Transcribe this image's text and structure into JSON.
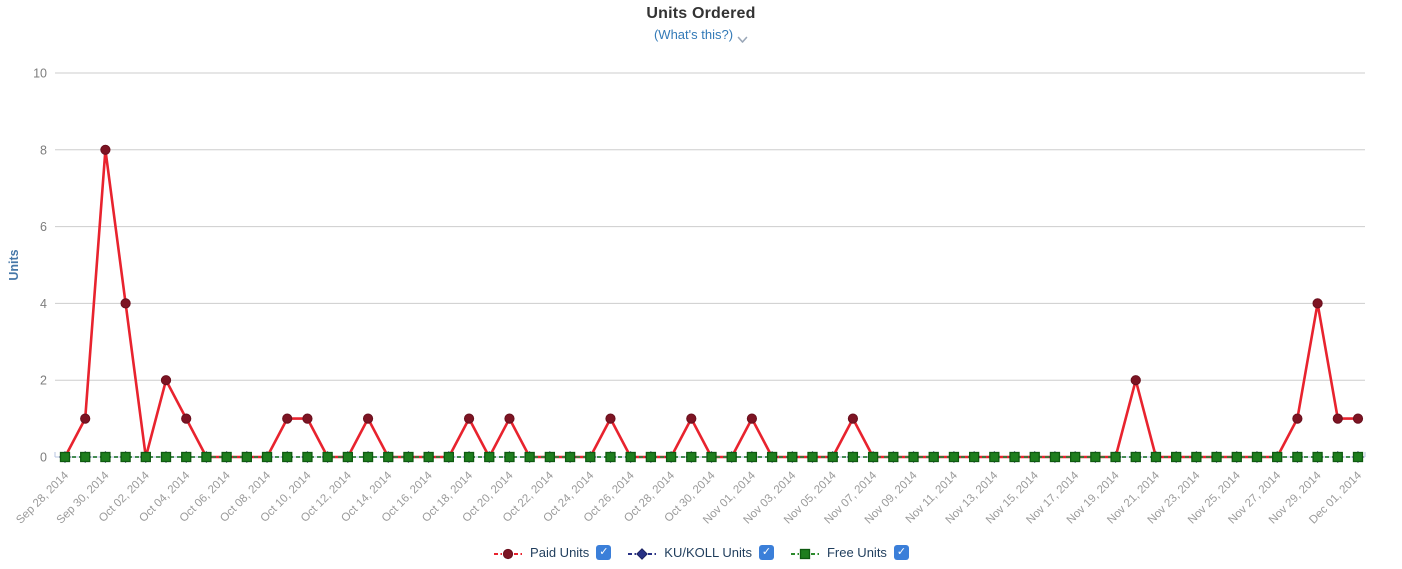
{
  "header": {
    "title": "Units Ordered",
    "whats_this_label": "(What's this?)"
  },
  "colors": {
    "title_text": "#333333",
    "link_blue": "#337ab7",
    "chevron_gray": "#999999",
    "gridline": "#cdcdcd",
    "axis_line": "#b7c4e2",
    "y_tick_label": "#7d7d7d",
    "x_tick_label": "#9a9a9a",
    "ylabel_blue": "#4577a8",
    "legend_text": "#1f3d5c",
    "checkbox_blue": "#3b7fd9"
  },
  "chart_data": {
    "type": "line",
    "title": "Units Ordered",
    "xlabel": "",
    "ylabel": "Units",
    "ylim": [
      0,
      10
    ],
    "yticks": [
      0,
      2,
      4,
      6,
      8,
      10
    ],
    "grid": "horizontal",
    "legend_position": "bottom",
    "x_tick_every": 2,
    "x": [
      "Sep 28, 2014",
      "Sep 29, 2014",
      "Sep 30, 2014",
      "Oct 01, 2014",
      "Oct 02, 2014",
      "Oct 03, 2014",
      "Oct 04, 2014",
      "Oct 05, 2014",
      "Oct 06, 2014",
      "Oct 07, 2014",
      "Oct 08, 2014",
      "Oct 09, 2014",
      "Oct 10, 2014",
      "Oct 11, 2014",
      "Oct 12, 2014",
      "Oct 13, 2014",
      "Oct 14, 2014",
      "Oct 15, 2014",
      "Oct 16, 2014",
      "Oct 17, 2014",
      "Oct 18, 2014",
      "Oct 19, 2014",
      "Oct 20, 2014",
      "Oct 21, 2014",
      "Oct 22, 2014",
      "Oct 23, 2014",
      "Oct 24, 2014",
      "Oct 25, 2014",
      "Oct 26, 2014",
      "Oct 27, 2014",
      "Oct 28, 2014",
      "Oct 29, 2014",
      "Oct 30, 2014",
      "Oct 31, 2014",
      "Nov 01, 2014",
      "Nov 02, 2014",
      "Nov 03, 2014",
      "Nov 04, 2014",
      "Nov 05, 2014",
      "Nov 06, 2014",
      "Nov 07, 2014",
      "Nov 08, 2014",
      "Nov 09, 2014",
      "Nov 10, 2014",
      "Nov 11, 2014",
      "Nov 12, 2014",
      "Nov 13, 2014",
      "Nov 14, 2014",
      "Nov 15, 2014",
      "Nov 16, 2014",
      "Nov 17, 2014",
      "Nov 18, 2014",
      "Nov 19, 2014",
      "Nov 20, 2014",
      "Nov 21, 2014",
      "Nov 22, 2014",
      "Nov 23, 2014",
      "Nov 24, 2014",
      "Nov 25, 2014",
      "Nov 26, 2014",
      "Nov 27, 2014",
      "Nov 28, 2014",
      "Nov 29, 2014",
      "Nov 30, 2014",
      "Dec 01, 2014"
    ],
    "series": [
      {
        "name": "Paid Units",
        "marker": "circle",
        "line_style": "solid",
        "line_color": "#e8232e",
        "marker_fill": "#7d1423",
        "marker_border": "#6a0f1d",
        "values": [
          0,
          1,
          8,
          4,
          0,
          2,
          1,
          0,
          0,
          0,
          0,
          1,
          1,
          0,
          0,
          1,
          0,
          0,
          0,
          0,
          1,
          0,
          1,
          0,
          0,
          0,
          0,
          1,
          0,
          0,
          0,
          1,
          0,
          0,
          1,
          0,
          0,
          0,
          0,
          1,
          0,
          0,
          0,
          0,
          0,
          0,
          0,
          0,
          0,
          0,
          0,
          0,
          0,
          2,
          0,
          0,
          0,
          0,
          0,
          0,
          0,
          1,
          4,
          1,
          1
        ]
      },
      {
        "name": "KU/KOLL Units",
        "marker": "diamond",
        "line_style": "dashed",
        "line_color": "#283185",
        "marker_fill": "#283185",
        "marker_border": "#1c2260",
        "values": [
          0,
          0,
          0,
          0,
          0,
          0,
          0,
          0,
          0,
          0,
          0,
          0,
          0,
          0,
          0,
          0,
          0,
          0,
          0,
          0,
          0,
          0,
          0,
          0,
          0,
          0,
          0,
          0,
          0,
          0,
          0,
          0,
          0,
          0,
          0,
          0,
          0,
          0,
          0,
          0,
          0,
          0,
          0,
          0,
          0,
          0,
          0,
          0,
          0,
          0,
          0,
          0,
          0,
          0,
          0,
          0,
          0,
          0,
          0,
          0,
          0,
          0,
          0,
          0,
          0
        ]
      },
      {
        "name": "Free Units",
        "marker": "square",
        "line_style": "dashed",
        "line_color": "#2c8a2c",
        "marker_fill": "#1e7e1e",
        "marker_border": "#0e5a10",
        "values": [
          0,
          0,
          0,
          0,
          0,
          0,
          0,
          0,
          0,
          0,
          0,
          0,
          0,
          0,
          0,
          0,
          0,
          0,
          0,
          0,
          0,
          0,
          0,
          0,
          0,
          0,
          0,
          0,
          0,
          0,
          0,
          0,
          0,
          0,
          0,
          0,
          0,
          0,
          0,
          0,
          0,
          0,
          0,
          0,
          0,
          0,
          0,
          0,
          0,
          0,
          0,
          0,
          0,
          0,
          0,
          0,
          0,
          0,
          0,
          0,
          0,
          0,
          0,
          0,
          0
        ]
      }
    ]
  },
  "legend": {
    "items": [
      {
        "label": "Paid Units",
        "checked": true
      },
      {
        "label": "KU/KOLL Units",
        "checked": true
      },
      {
        "label": "Free Units",
        "checked": true
      }
    ],
    "check_glyph": "✓"
  }
}
